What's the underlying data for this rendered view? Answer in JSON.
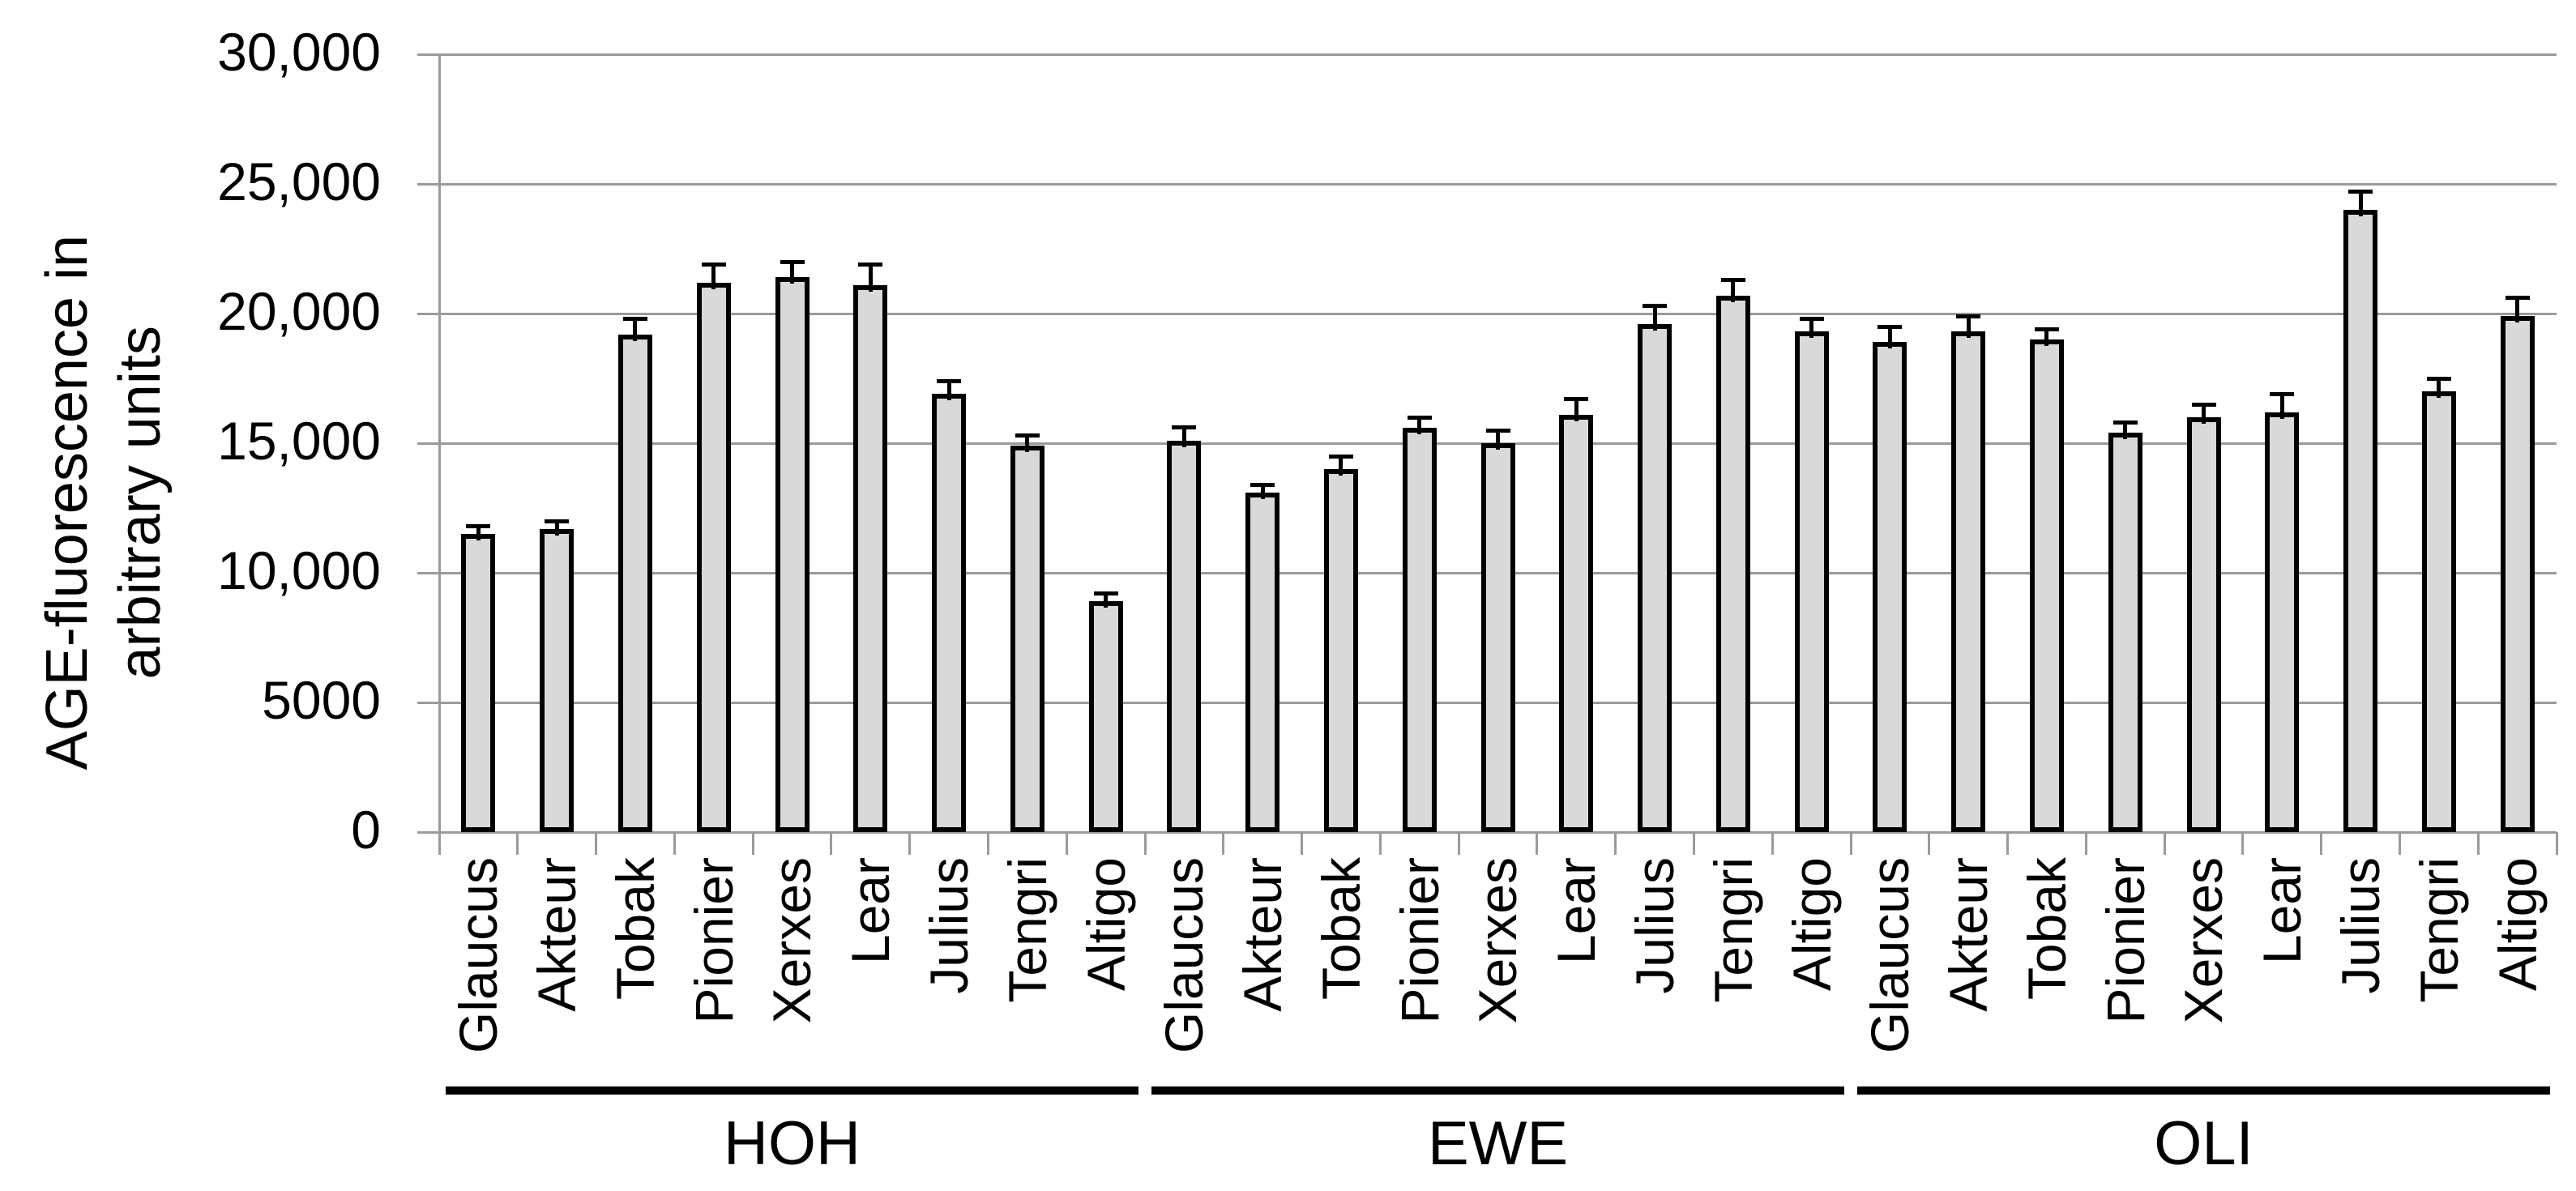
{
  "chart_data": {
    "type": "bar",
    "title": "",
    "ylabel_line1": "AGE-fluorescence in",
    "ylabel_line2": "arbitrary units",
    "xlabel": "",
    "ymax": 30000,
    "ymin": 0,
    "grid": true,
    "legend": false,
    "yticks": [
      {
        "label": "30,000",
        "value": 30000
      },
      {
        "label": "25,000",
        "value": 25000
      },
      {
        "label": "20,000",
        "value": 20000
      },
      {
        "label": "15,000",
        "value": 15000
      },
      {
        "label": "10,000",
        "value": 10000
      },
      {
        "label": "5000",
        "value": 5000
      },
      {
        "label": "0",
        "value": 0
      }
    ],
    "categories": [
      "Glaucus",
      "Akteur",
      "Tobak",
      "Pionier",
      "Xerxes",
      "Lear",
      "Julius",
      "Tengri",
      "Altigo"
    ],
    "groups": [
      {
        "name": "HOH",
        "values": [
          11500,
          11700,
          19200,
          21200,
          21400,
          21100,
          16900,
          14900,
          8900
        ],
        "errors": [
          300,
          300,
          600,
          700,
          600,
          800,
          500,
          400,
          300
        ]
      },
      {
        "name": "EWE",
        "values": [
          15100,
          13100,
          14000,
          15600,
          15000,
          16100,
          19600,
          20700,
          19300
        ],
        "errors": [
          500,
          300,
          500,
          400,
          500,
          600,
          700,
          600,
          500
        ]
      },
      {
        "name": "OLI",
        "values": [
          18900,
          19300,
          19000,
          15400,
          16000,
          16200,
          24000,
          17000,
          19900
        ],
        "errors": [
          600,
          600,
          400,
          400,
          500,
          700,
          700,
          500,
          700
        ]
      }
    ],
    "colors": {
      "bar_fill": "#d9d9d9",
      "bar_border": "#000000",
      "grid": "#9a9a9a",
      "axis": "#9a9a9a",
      "error": "#000000",
      "text": "#000000"
    }
  }
}
